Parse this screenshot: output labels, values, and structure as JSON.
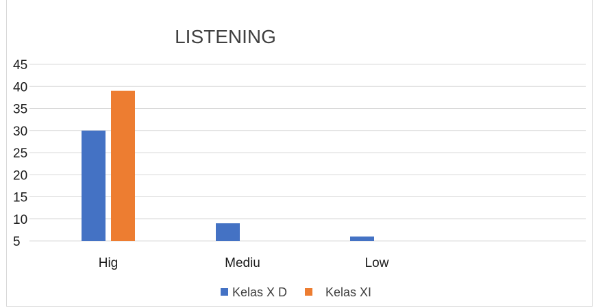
{
  "chart_data": {
    "type": "bar",
    "title": "LISTENING",
    "categories": [
      "Hig",
      "Mediu",
      "Low"
    ],
    "series": [
      {
        "name": "Kelas X D",
        "color": "#4472c4",
        "values": [
          30,
          9,
          6
        ]
      },
      {
        "name": "Kelas XI",
        "color": "#ed7d31",
        "values": [
          39,
          5,
          5
        ]
      }
    ],
    "yticks": [
      5,
      10,
      15,
      20,
      25,
      30,
      35,
      40,
      45
    ],
    "ylim": [
      5,
      45
    ],
    "grid": true,
    "legend_position": "bottom"
  }
}
